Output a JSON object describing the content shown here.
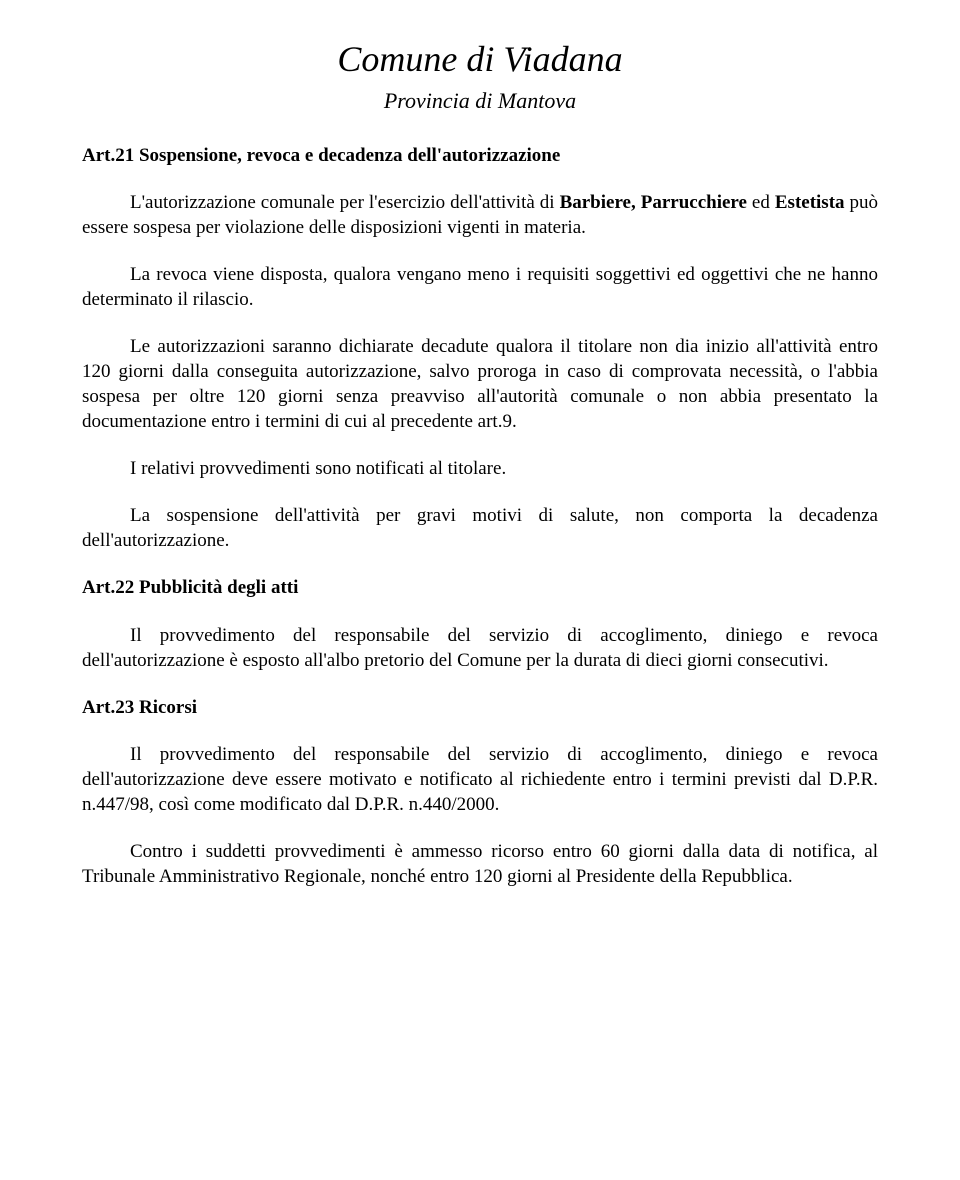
{
  "header": {
    "title": "Comune di Viadana",
    "subtitle": "Provincia di Mantova"
  },
  "articles": [
    {
      "heading": "Art.21 Sospensione, revoca e decadenza dell'autorizzazione",
      "paragraphs": [
        {
          "pre": "L'autorizzazione comunale per l'esercizio dell'attività di ",
          "bold": "Barbiere, Parrucchiere",
          "mid": " ed ",
          "bold2": "Estetista",
          "post": " può essere sospesa per violazione delle disposizioni vigenti in materia."
        },
        {
          "text": "La revoca viene disposta, qualora vengano meno i requisiti soggettivi ed oggettivi che ne hanno determinato il rilascio."
        },
        {
          "text": "Le autorizzazioni saranno dichiarate decadute qualora il titolare non dia inizio all'attività entro 120 giorni dalla conseguita autorizzazione, salvo proroga in caso di comprovata necessità, o l'abbia sospesa per oltre 120 giorni senza preavviso all'autorità comunale o non abbia presentato la documentazione entro i termini di cui al precedente art.9."
        },
        {
          "text": "I relativi provvedimenti sono notificati al titolare."
        },
        {
          "text": "La sospensione dell'attività per gravi motivi di salute, non comporta la decadenza dell'autorizzazione."
        }
      ]
    },
    {
      "heading": "Art.22 Pubblicità degli atti",
      "paragraphs": [
        {
          "text": "Il provvedimento del responsabile del servizio di accoglimento, diniego e revoca dell'autorizzazione è esposto all'albo pretorio del Comune per la durata di dieci giorni consecutivi."
        }
      ]
    },
    {
      "heading": "Art.23 Ricorsi",
      "paragraphs": [
        {
          "text": "Il provvedimento del responsabile del servizio di accoglimento, diniego e revoca dell'autorizzazione deve essere motivato e notificato al richiedente entro i termini previsti dal D.P.R. n.447/98, così come modificato dal D.P.R. n.440/2000."
        },
        {
          "text": "Contro i suddetti provvedimenti è ammesso ricorso entro 60 giorni dalla data di notifica, al Tribunale Amministrativo Regionale, nonché entro 120 giorni al Presidente della Repubblica."
        }
      ]
    }
  ],
  "style": {
    "background_color": "#ffffff",
    "text_color": "#000000",
    "title_fontsize": 36,
    "subtitle_fontsize": 22,
    "body_fontsize": 19,
    "font_family": "Times New Roman"
  }
}
